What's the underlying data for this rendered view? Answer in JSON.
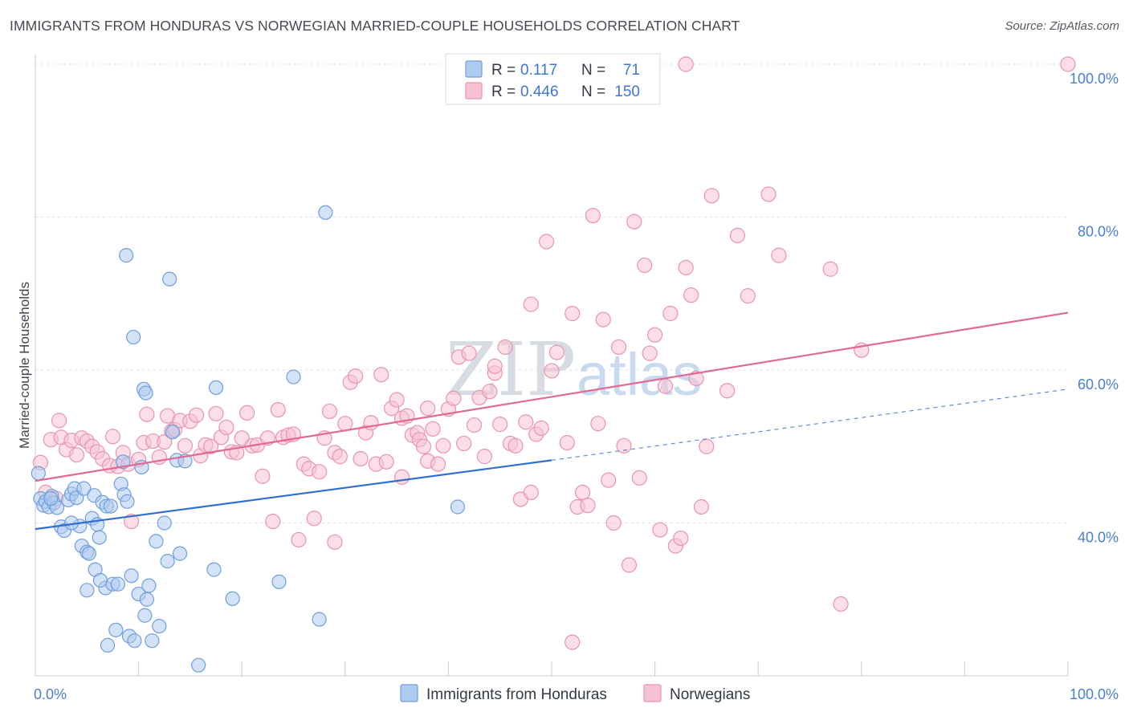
{
  "header": {
    "title": "IMMIGRANTS FROM HONDURAS VS NORWEGIAN MARRIED-COUPLE HOUSEHOLDS CORRELATION CHART",
    "source": "Source: ZipAtlas.com"
  },
  "watermark": {
    "part1": "ZIP",
    "part2": "atlas"
  },
  "legend": {
    "r_label": "R =",
    "n_label": "N =",
    "rows": [
      {
        "series": "Immigrants from Honduras",
        "r": "0.117",
        "n": "71",
        "color": "#6fa3e6"
      },
      {
        "series": "Norwegians",
        "r": "0.446",
        "n": "150",
        "color": "#f08aa8"
      }
    ]
  },
  "colors": {
    "blue_fill": "#aecbf0",
    "blue_stroke": "#6f9fdc",
    "blue_line": "#2f6fcf",
    "pink_fill": "#f7c2d2",
    "pink_stroke": "#e993b0",
    "pink_line": "#e06a95",
    "grid": "#d9dde3",
    "axis_text": "#4a7fd0"
  },
  "chart_data": {
    "type": "scatter",
    "xlabel": "",
    "ylabel": "Married-couple Households",
    "xlim": [
      0,
      100
    ],
    "ylim": [
      20,
      100
    ],
    "x_tick_labels": [
      "0.0%",
      "100.0%"
    ],
    "y_ticks": [
      40,
      60,
      80,
      100
    ],
    "y_tick_labels": [
      "40.0%",
      "60.0%",
      "80.0%",
      "100.0%"
    ],
    "grid": "horizontal dashed",
    "legend_position": "top-center",
    "series": [
      {
        "name": "Immigrants from Honduras",
        "color": "#6fa3e6",
        "trend": {
          "x0": 0,
          "y0": 39.2,
          "x1": 50,
          "y1": 48.2,
          "dashed_to_x": 100,
          "dashed_to_y": 57.5
        },
        "points": [
          [
            0.3,
            46.5
          ],
          [
            0.5,
            43.2
          ],
          [
            0.8,
            42.3
          ],
          [
            1.0,
            42.8
          ],
          [
            1.3,
            42.1
          ],
          [
            1.6,
            43.5
          ],
          [
            1.8,
            42.6
          ],
          [
            2.1,
            42.0
          ],
          [
            1.5,
            43.2
          ],
          [
            2.5,
            39.5
          ],
          [
            2.8,
            39.0
          ],
          [
            3.2,
            43.0
          ],
          [
            3.5,
            43.8
          ],
          [
            3.8,
            44.5
          ],
          [
            4.0,
            43.3
          ],
          [
            4.3,
            39.6
          ],
          [
            4.5,
            37.0
          ],
          [
            5.0,
            36.2
          ],
          [
            4.7,
            44.5
          ],
          [
            5.2,
            36.0
          ],
          [
            5.5,
            40.6
          ],
          [
            5.7,
            43.6
          ],
          [
            6.0,
            39.8
          ],
          [
            6.2,
            38.1
          ],
          [
            6.5,
            42.7
          ],
          [
            6.8,
            31.5
          ],
          [
            5.0,
            31.2
          ],
          [
            5.8,
            33.9
          ],
          [
            6.3,
            32.5
          ],
          [
            6.9,
            42.2
          ],
          [
            7.3,
            42.2
          ],
          [
            7.5,
            32.0
          ],
          [
            7.8,
            26.0
          ],
          [
            8.0,
            32.0
          ],
          [
            8.3,
            45.1
          ],
          [
            8.6,
            43.7
          ],
          [
            8.9,
            42.8
          ],
          [
            9.1,
            25.2
          ],
          [
            9.3,
            33.1
          ],
          [
            9.6,
            24.6
          ],
          [
            10.0,
            30.7
          ],
          [
            10.3,
            47.3
          ],
          [
            10.6,
            27.9
          ],
          [
            10.8,
            30.0
          ],
          [
            11.0,
            31.8
          ],
          [
            11.3,
            24.6
          ],
          [
            11.7,
            37.6
          ],
          [
            12.0,
            26.5
          ],
          [
            12.5,
            40.0
          ],
          [
            12.8,
            35.0
          ],
          [
            13.3,
            51.9
          ],
          [
            13.7,
            48.2
          ],
          [
            14.0,
            36.0
          ],
          [
            14.5,
            48.1
          ],
          [
            15.8,
            21.4
          ],
          [
            17.3,
            33.9
          ],
          [
            17.5,
            57.7
          ],
          [
            19.1,
            30.1
          ],
          [
            8.8,
            75.0
          ],
          [
            9.5,
            64.3
          ],
          [
            10.5,
            57.5
          ],
          [
            10.7,
            57.0
          ],
          [
            13.0,
            71.9
          ],
          [
            23.6,
            32.3
          ],
          [
            25.0,
            59.1
          ],
          [
            27.5,
            27.4
          ],
          [
            28.1,
            80.6
          ],
          [
            40.9,
            42.1
          ],
          [
            8.5,
            48.0
          ],
          [
            7.0,
            24.0
          ],
          [
            3.5,
            40.0
          ]
        ]
      },
      {
        "name": "Norwegians",
        "color": "#f08aa8",
        "trend": {
          "x0": 0,
          "y0": 45.5,
          "x1": 100,
          "y1": 67.5
        },
        "points": [
          [
            0.5,
            47.9
          ],
          [
            1.0,
            44.0
          ],
          [
            1.5,
            50.9
          ],
          [
            2.0,
            43.2
          ],
          [
            2.5,
            51.2
          ],
          [
            2.3,
            53.4
          ],
          [
            3.0,
            49.6
          ],
          [
            3.5,
            50.8
          ],
          [
            4.0,
            48.9
          ],
          [
            4.5,
            51.1
          ],
          [
            5.0,
            50.7
          ],
          [
            5.5,
            50.0
          ],
          [
            6.0,
            49.3
          ],
          [
            6.5,
            48.4
          ],
          [
            7.2,
            47.5
          ],
          [
            7.5,
            51.3
          ],
          [
            8.0,
            47.4
          ],
          [
            8.5,
            49.2
          ],
          [
            9.0,
            47.7
          ],
          [
            9.3,
            40.2
          ],
          [
            10.0,
            48.3
          ],
          [
            10.5,
            50.5
          ],
          [
            10.8,
            54.2
          ],
          [
            11.4,
            50.7
          ],
          [
            12.0,
            48.6
          ],
          [
            12.5,
            50.6
          ],
          [
            12.8,
            54.0
          ],
          [
            13.2,
            52.0
          ],
          [
            13.5,
            52.2
          ],
          [
            14.0,
            53.4
          ],
          [
            14.5,
            50.1
          ],
          [
            15.0,
            53.3
          ],
          [
            15.6,
            54.1
          ],
          [
            16.0,
            48.8
          ],
          [
            16.5,
            50.2
          ],
          [
            17.0,
            50.0
          ],
          [
            17.5,
            54.3
          ],
          [
            18.0,
            51.2
          ],
          [
            18.5,
            52.5
          ],
          [
            19.0,
            49.3
          ],
          [
            19.5,
            49.2
          ],
          [
            20.0,
            51.1
          ],
          [
            20.5,
            54.4
          ],
          [
            21.0,
            50.1
          ],
          [
            21.5,
            50.2
          ],
          [
            22.0,
            46.1
          ],
          [
            22.5,
            51.1
          ],
          [
            23.0,
            40.2
          ],
          [
            23.5,
            54.8
          ],
          [
            24.0,
            51.2
          ],
          [
            24.5,
            51.5
          ],
          [
            25.0,
            51.6
          ],
          [
            25.5,
            37.8
          ],
          [
            26.0,
            47.7
          ],
          [
            26.5,
            47.1
          ],
          [
            27.0,
            40.6
          ],
          [
            27.5,
            46.7
          ],
          [
            28.0,
            51.1
          ],
          [
            28.5,
            54.6
          ],
          [
            29.0,
            49.2
          ],
          [
            29.5,
            48.7
          ],
          [
            30.0,
            53.0
          ],
          [
            30.5,
            58.4
          ],
          [
            31.0,
            59.2
          ],
          [
            31.5,
            48.4
          ],
          [
            32.0,
            51.8
          ],
          [
            32.5,
            53.1
          ],
          [
            33.0,
            47.7
          ],
          [
            33.5,
            59.4
          ],
          [
            34.0,
            48.0
          ],
          [
            34.5,
            55.0
          ],
          [
            35.0,
            56.1
          ],
          [
            35.5,
            53.7
          ],
          [
            36.0,
            54.0
          ],
          [
            36.5,
            51.5
          ],
          [
            37.0,
            51.8
          ],
          [
            37.2,
            50.9
          ],
          [
            37.6,
            50.0
          ],
          [
            38.0,
            48.1
          ],
          [
            38.5,
            52.3
          ],
          [
            39.0,
            47.7
          ],
          [
            39.5,
            50.1
          ],
          [
            40.0,
            54.9
          ],
          [
            40.5,
            56.3
          ],
          [
            41.0,
            61.7
          ],
          [
            41.5,
            50.4
          ],
          [
            42.0,
            62.2
          ],
          [
            42.5,
            52.8
          ],
          [
            43.0,
            56.4
          ],
          [
            43.5,
            48.7
          ],
          [
            44.0,
            57.2
          ],
          [
            44.5,
            59.6
          ],
          [
            45.0,
            52.9
          ],
          [
            45.5,
            63.0
          ],
          [
            46.0,
            50.4
          ],
          [
            46.5,
            50.1
          ],
          [
            47.0,
            43.1
          ],
          [
            47.5,
            53.2
          ],
          [
            48.0,
            68.6
          ],
          [
            48.5,
            51.6
          ],
          [
            49.0,
            52.4
          ],
          [
            49.5,
            76.8
          ],
          [
            50.0,
            59.9
          ],
          [
            50.5,
            62.3
          ],
          [
            51.5,
            50.5
          ],
          [
            52.0,
            67.4
          ],
          [
            52.5,
            42.1
          ],
          [
            53.0,
            44.0
          ],
          [
            53.5,
            42.3
          ],
          [
            54.0,
            80.2
          ],
          [
            54.5,
            53.0
          ],
          [
            55.0,
            66.6
          ],
          [
            55.5,
            45.6
          ],
          [
            56.0,
            40.0
          ],
          [
            56.5,
            63.0
          ],
          [
            57.0,
            50.1
          ],
          [
            57.5,
            34.5
          ],
          [
            58.0,
            79.4
          ],
          [
            58.5,
            45.9
          ],
          [
            59.0,
            73.7
          ],
          [
            59.5,
            62.2
          ],
          [
            60.0,
            64.6
          ],
          [
            60.5,
            39.1
          ],
          [
            61.0,
            57.9
          ],
          [
            61.5,
            67.4
          ],
          [
            62.0,
            37.0
          ],
          [
            62.5,
            38.0
          ],
          [
            63.0,
            73.4
          ],
          [
            63.5,
            69.8
          ],
          [
            64.0,
            58.9
          ],
          [
            64.5,
            42.1
          ],
          [
            65.0,
            50.0
          ],
          [
            65.5,
            82.8
          ],
          [
            67.0,
            57.3
          ],
          [
            68.0,
            77.6
          ],
          [
            69.0,
            69.7
          ],
          [
            71.0,
            83.0
          ],
          [
            72.0,
            75.0
          ],
          [
            77.0,
            73.2
          ],
          [
            80.0,
            62.6
          ],
          [
            78.0,
            29.4
          ],
          [
            58.5,
            100.0
          ],
          [
            63.0,
            100.0
          ],
          [
            100.0,
            100.0
          ],
          [
            52.0,
            24.4
          ],
          [
            48.0,
            44.0
          ],
          [
            35.5,
            46.0
          ],
          [
            29.0,
            37.5
          ],
          [
            44.5,
            60.5
          ],
          [
            38.0,
            55.0
          ]
        ]
      }
    ]
  },
  "bottom_legend": [
    {
      "label": "Immigrants from Honduras",
      "color": "#6fa3e6"
    },
    {
      "label": "Norwegians",
      "color": "#f08aa8"
    }
  ]
}
